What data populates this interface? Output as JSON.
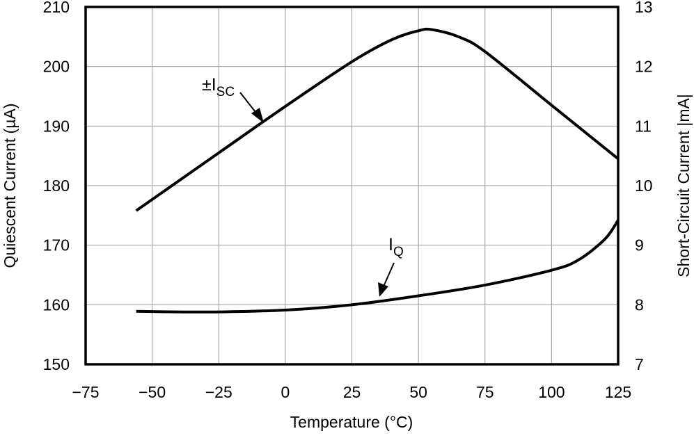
{
  "chart_data": {
    "type": "line",
    "title": "",
    "xlabel": "Temperature (°C)",
    "ylabel": "Quiescent Current (µA)",
    "ylabel_right": "Short-Circuit Current |mA|",
    "xlim": [
      -75,
      125
    ],
    "ylim": [
      150,
      210
    ],
    "ylim_right": [
      7,
      13
    ],
    "grid": true,
    "x_ticks": [
      "−75",
      "−50",
      "−25",
      "0",
      "25",
      "50",
      "75",
      "100",
      "125"
    ],
    "x_tick_values": [
      -75,
      -50,
      -25,
      0,
      25,
      50,
      75,
      100,
      125
    ],
    "y_ticks": [
      "150",
      "160",
      "170",
      "180",
      "190",
      "200",
      "210"
    ],
    "y_tick_values": [
      150,
      160,
      170,
      180,
      190,
      200,
      210
    ],
    "y_ticks_right": [
      "7",
      "8",
      "9",
      "10",
      "11",
      "12",
      "13"
    ],
    "y_tick_values_right": [
      7,
      8,
      9,
      10,
      11,
      12,
      13
    ],
    "series": [
      {
        "name": "±ISC",
        "label_main": "±I",
        "label_sub": "SC",
        "axis": "right",
        "x": [
          -56,
          -25,
          0,
          25,
          40,
          50,
          55,
          65,
          75,
          100,
          125
        ],
        "y": [
          9.58,
          10.55,
          11.33,
          12.08,
          12.45,
          12.6,
          12.62,
          12.5,
          12.25,
          11.35,
          10.45
        ]
      },
      {
        "name": "IQ",
        "label_main": "I",
        "label_sub": "Q",
        "axis": "left",
        "x": [
          -56,
          -40,
          -25,
          0,
          25,
          50,
          75,
          100,
          110,
          120,
          125
        ],
        "y": [
          158.9,
          158.8,
          158.8,
          159.1,
          160.0,
          161.5,
          163.3,
          165.8,
          167.5,
          171.0,
          174.2
        ]
      }
    ]
  }
}
